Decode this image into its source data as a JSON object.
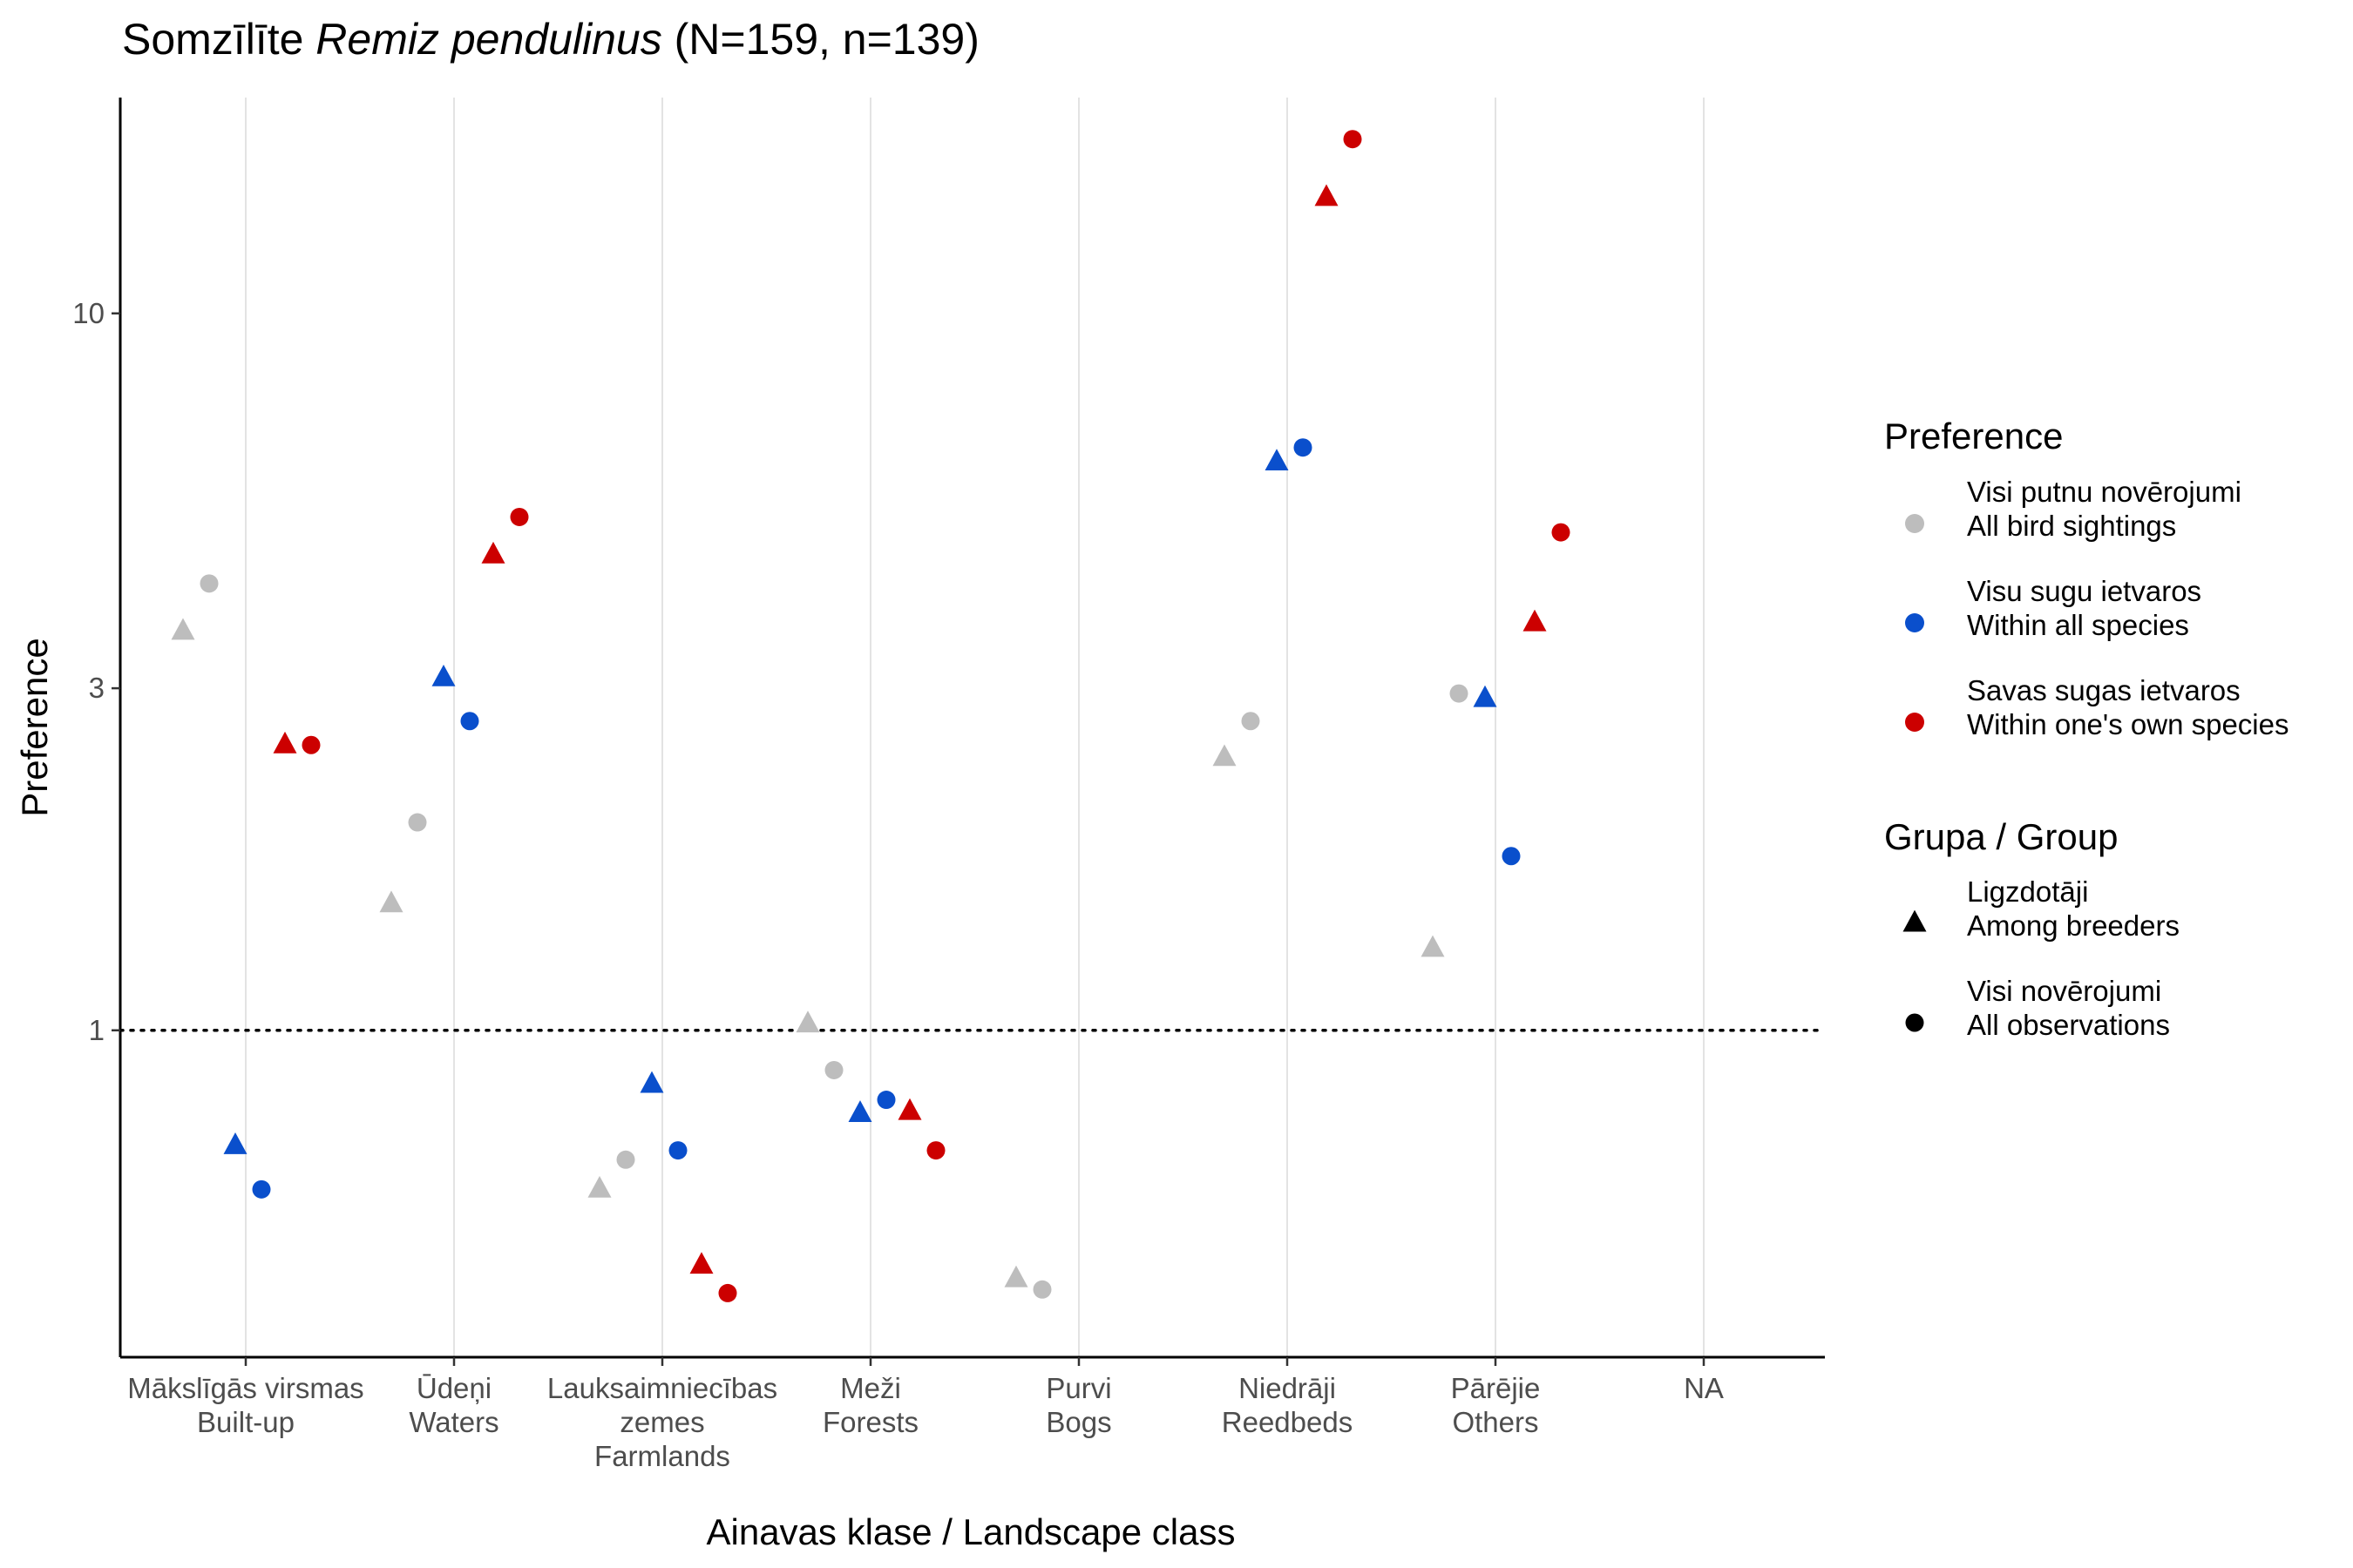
{
  "chart_data": {
    "type": "scatter",
    "title": {
      "prefix": "Somzīlīte ",
      "species": "Remiz pendulinus",
      "suffix": " (N=159, n=139)"
    },
    "xlabel": "Ainavas klase / Landscape class",
    "ylabel": "Preference",
    "y_scale": "log",
    "ylim": [
      0.35,
      20
    ],
    "y_ticks": [
      {
        "value": 1,
        "label": "1"
      },
      {
        "value": 3,
        "label": "3"
      },
      {
        "value": 10,
        "label": "10"
      }
    ],
    "reference_line": {
      "y": 1,
      "style": "dotted"
    },
    "categories": [
      {
        "lv": "Mākslīgās virsmas",
        "en": "Built-up"
      },
      {
        "lv": "Ūdeņi",
        "en": "Waters"
      },
      {
        "lv": "Lauksaimniecības",
        "lv2": "zemes",
        "en": "Farmlands"
      },
      {
        "lv": "Meži",
        "en": "Forests"
      },
      {
        "lv": "Purvi",
        "en": "Bogs"
      },
      {
        "lv": "Niedrāji",
        "en": "Reedbeds"
      },
      {
        "lv": "Pārējie",
        "en": "Others"
      },
      {
        "lv": "NA"
      }
    ],
    "legend": {
      "placement": "right",
      "preference": {
        "title": "Preference",
        "items": [
          {
            "key": "all_sightings",
            "line1": "Visi putnu novērojumi",
            "line2": "All bird sightings",
            "color": "#bdbdbd"
          },
          {
            "key": "all_species",
            "line1": "Visu sugu ietvaros",
            "line2": "Within all species",
            "color": "#0a4fcc"
          },
          {
            "key": "own_species",
            "line1": "Savas sugas ietvaros",
            "line2": "Within one's own species",
            "color": "#cc0000"
          }
        ]
      },
      "group": {
        "title": "Grupa / Group",
        "items": [
          {
            "key": "breeders",
            "line1": "Ligzdotāji",
            "line2": "Among breeders",
            "shape": "triangle"
          },
          {
            "key": "all_obs",
            "line1": "Visi novērojumi",
            "line2": "All observations",
            "shape": "circle"
          }
        ]
      }
    },
    "series": [
      {
        "preference": "all_sightings",
        "group": "breeders",
        "values": [
          3.6,
          1.5,
          0.6,
          1.02,
          0.45,
          2.4,
          1.3,
          null
        ]
      },
      {
        "preference": "all_sightings",
        "group": "all_obs",
        "values": [
          4.2,
          1.95,
          0.66,
          0.88,
          0.435,
          2.7,
          2.95,
          null
        ]
      },
      {
        "preference": "all_species",
        "group": "breeders",
        "values": [
          0.69,
          3.1,
          0.84,
          0.765,
          null,
          6.2,
          2.9,
          null
        ]
      },
      {
        "preference": "all_species",
        "group": "all_obs",
        "values": [
          0.6,
          2.7,
          0.68,
          0.8,
          null,
          6.5,
          1.75,
          null
        ]
      },
      {
        "preference": "own_species",
        "group": "breeders",
        "values": [
          2.5,
          4.6,
          0.47,
          0.77,
          null,
          14.5,
          3.7,
          null
        ]
      },
      {
        "preference": "own_species",
        "group": "all_obs",
        "values": [
          2.5,
          5.2,
          0.43,
          0.68,
          null,
          17.5,
          4.95,
          null
        ]
      }
    ]
  }
}
